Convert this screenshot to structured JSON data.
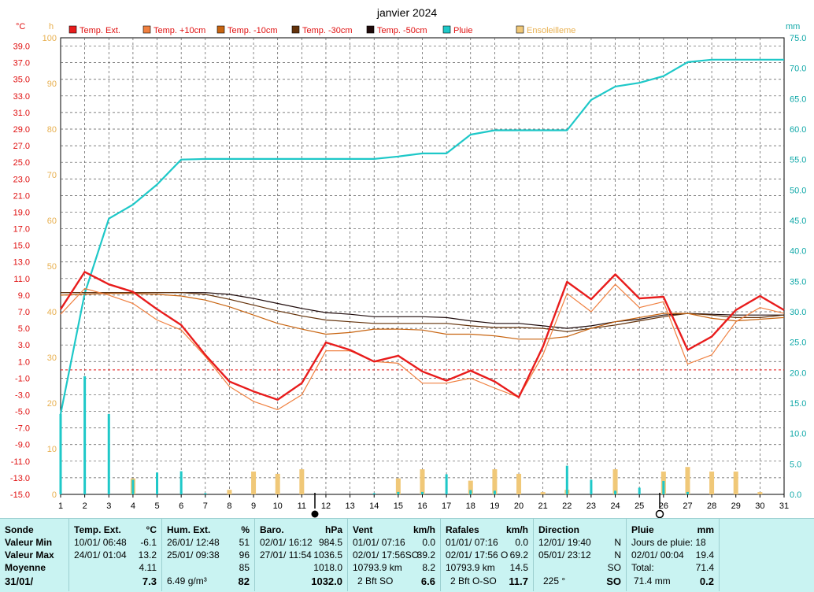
{
  "chart_data": {
    "type": "line",
    "title": "janvier 2024",
    "x": [
      1,
      2,
      3,
      4,
      5,
      6,
      7,
      8,
      9,
      10,
      11,
      12,
      13,
      14,
      15,
      16,
      17,
      18,
      19,
      20,
      21,
      22,
      23,
      24,
      25,
      26,
      27,
      28,
      29,
      30,
      31
    ],
    "x_ticks": [
      "1",
      "2",
      "3",
      "4",
      "5",
      "6",
      "7",
      "8",
      "9",
      "10",
      "11",
      "12",
      "13",
      "14",
      "15",
      "16",
      "17",
      "18",
      "19",
      "20",
      "21",
      "22",
      "23",
      "24",
      "25",
      "26",
      "27",
      "28",
      "29",
      "30",
      "31"
    ],
    "axis_units": {
      "left_temp": "°C",
      "left_sun": "h",
      "right_rain": "mm"
    },
    "y_left_temp": {
      "range": [
        -15,
        40
      ],
      "ticks": [
        "39.0",
        "37.0",
        "35.0",
        "33.0",
        "31.0",
        "29.0",
        "27.0",
        "25.0",
        "23.0",
        "21.0",
        "19.0",
        "17.0",
        "15.0",
        "13.0",
        "11.0",
        "9.0",
        "7.0",
        "5.0",
        "3.0",
        "1.0",
        "-1.0",
        "-3.0",
        "-5.0",
        "-7.0",
        "-9.0",
        "-11.0",
        "-13.0",
        "-15.0"
      ]
    },
    "y_left_sun": {
      "range": [
        0,
        100
      ],
      "ticks": [
        "100",
        "90",
        "80",
        "70",
        "60",
        "50",
        "40",
        "30",
        "20",
        "10",
        "0"
      ]
    },
    "y_right_rain": {
      "range": [
        0,
        75
      ],
      "ticks": [
        "75.0",
        "70.0",
        "65.0",
        "60.0",
        "55.0",
        "50.0",
        "45.0",
        "40.0",
        "35.0",
        "30.0",
        "25.0",
        "20.0",
        "15.0",
        "10.0",
        "5.0",
        "0.0"
      ]
    },
    "grid": true,
    "legend_position": "top",
    "reference_line_temp": 0,
    "series": [
      {
        "name": "Temp. Ext.",
        "color": "#e81c1c",
        "axis": "temp",
        "values": [
          7.3,
          11.8,
          10.3,
          9.4,
          7.3,
          5.4,
          1.8,
          -1.4,
          -2.6,
          -3.6,
          -1.6,
          3.3,
          2.4,
          1.0,
          1.7,
          -0.2,
          -1.3,
          -0.1,
          -1.4,
          -3.3,
          2.8,
          10.6,
          8.5,
          11.5,
          8.6,
          8.8,
          2.4,
          4.0,
          7.2,
          8.9,
          7.2
        ]
      },
      {
        "name": "Temp. +10cm",
        "color": "#f08040",
        "axis": "temp",
        "values": [
          6.7,
          9.8,
          9.0,
          8.0,
          6.0,
          4.8,
          1.6,
          -2.0,
          -3.8,
          -4.8,
          -3.0,
          2.3,
          2.3,
          1.0,
          0.8,
          -1.6,
          -1.6,
          -1.0,
          -2.2,
          -3.3,
          1.8,
          9.2,
          7.0,
          10.3,
          7.5,
          8.2,
          0.7,
          1.8,
          5.8,
          7.5,
          6.8
        ]
      },
      {
        "name": "Temp. -10cm",
        "color": "#c86410",
        "axis": "temp",
        "values": [
          9.0,
          9.1,
          9.2,
          9.2,
          9.1,
          8.9,
          8.4,
          7.6,
          6.6,
          5.6,
          4.9,
          4.3,
          4.5,
          4.9,
          4.9,
          4.8,
          4.3,
          4.3,
          4.1,
          3.7,
          3.7,
          4.0,
          5.0,
          5.8,
          6.3,
          6.8,
          6.8,
          6.2,
          5.9,
          6.1,
          6.3
        ]
      },
      {
        "name": "Temp. -30cm",
        "color": "#64320a",
        "axis": "temp",
        "values": [
          9.3,
          9.3,
          9.3,
          9.3,
          9.3,
          9.3,
          9.1,
          8.5,
          7.8,
          7.1,
          6.5,
          6.0,
          5.8,
          5.6,
          5.6,
          5.6,
          5.6,
          5.3,
          5.1,
          5.1,
          5.0,
          4.6,
          5.0,
          5.4,
          5.9,
          6.4,
          6.8,
          6.6,
          6.3,
          6.3,
          6.6
        ]
      },
      {
        "name": "Temp. -50cm",
        "color": "#1e0a0a",
        "axis": "temp",
        "values": [
          9.3,
          9.3,
          9.3,
          9.3,
          9.3,
          9.3,
          9.3,
          9.1,
          8.6,
          8.0,
          7.4,
          6.9,
          6.7,
          6.4,
          6.4,
          6.4,
          6.3,
          5.9,
          5.6,
          5.6,
          5.3,
          5.0,
          5.3,
          5.8,
          6.1,
          6.6,
          6.8,
          6.7,
          6.6,
          6.6,
          6.6
        ]
      },
      {
        "name": "Pluie",
        "color": "#1ec8c8",
        "axis": "rain",
        "values": [
          13.2,
          33.0,
          45.3,
          47.6,
          50.9,
          55.0,
          55.1,
          55.1,
          55.1,
          55.1,
          55.1,
          55.1,
          55.1,
          55.1,
          55.5,
          56.0,
          56.0,
          59.1,
          59.8,
          59.8,
          59.8,
          59.8,
          64.8,
          67.0,
          67.6,
          68.7,
          71.0,
          71.4,
          71.4,
          71.4,
          71.4
        ]
      },
      {
        "name": "Ensoleilleme",
        "color": "#f0c878",
        "axis": "sun",
        "type": "bar",
        "values": [
          0,
          0,
          0,
          3.5,
          0,
          0,
          0,
          1,
          5,
          4.5,
          5.5,
          0,
          0,
          0,
          3.5,
          5.5,
          0,
          3,
          5.5,
          4.5,
          0.5,
          1,
          0,
          5.5,
          0,
          5,
          6,
          5,
          5,
          0.5,
          0
        ]
      },
      {
        "name": "Pluie journalière",
        "color": "#1ec8c8",
        "axis": "rain",
        "type": "bar",
        "legend": false,
        "values": [
          13.2,
          19.4,
          13.2,
          2.4,
          3.6,
          3.8,
          0.2,
          0,
          0,
          0,
          0,
          0,
          0,
          0.2,
          0.4,
          0.4,
          3.3,
          0.7,
          0.6,
          0,
          0,
          4.7,
          2.4,
          0.6,
          1.1,
          2.2,
          0.4,
          0,
          0,
          0,
          0
        ]
      }
    ]
  },
  "summary": {
    "sonde": {
      "header": "Sonde",
      "rows": [
        "Valeur Min",
        "Valeur Max",
        "Moyenne",
        "31/01/"
      ]
    },
    "temp": {
      "title": "Temp. Ext.",
      "unit": "°C",
      "min_time": "10/01/ 06:48",
      "min_val": "-6.1",
      "max_time": "24/01/ 01:04",
      "max_val": "13.2",
      "avg": "4.11",
      "current": "7.3"
    },
    "hum": {
      "title": "Hum. Ext.",
      "unit": "%",
      "min_time": "26/01/ 12:48",
      "min_val": "51",
      "max_time": "25/01/ 09:38",
      "max_val": "96",
      "avg": "85",
      "extra": "6.49 g/m³",
      "current": "82"
    },
    "baro": {
      "title": "Baro.",
      "unit": "hPa",
      "min_time": "02/01/ 16:12",
      "min_val": "984.5",
      "max_time": "27/01/ 11:54",
      "max_val": "1036.5",
      "avg": "1018.0",
      "current": "1032.0"
    },
    "vent": {
      "title": "Vent",
      "unit": "km/h",
      "min_time": "01/01/ 07:16",
      "min_val": "0.0",
      "max_time": "02/01/ 17:56SO",
      "max_val": "39.2",
      "dist": "10793.9 km",
      "avg": "8.2",
      "extra": "2 Bft SO",
      "current": "6.6"
    },
    "rafales": {
      "title": "Rafales",
      "unit": "km/h",
      "min_time": "01/01/ 07:16",
      "min_val": "0.0",
      "max_time": "02/01/ 17:56 O",
      "max_val": "69.2",
      "dist": "10793.9 km",
      "avg": "14.5",
      "extra": "2 Bft O-SO",
      "current": "11.7"
    },
    "direction": {
      "title": "Direction",
      "min_time": "12/01/ 19:40",
      "min_val": "N",
      "max_time": "05/01/ 23:12",
      "max_val": "N",
      "avg": "SO",
      "extra": "225 °",
      "current": "SO"
    },
    "pluie": {
      "title": "Pluie",
      "unit": "mm",
      "jours": "Jours de pluie: 18",
      "max_time": "02/01/ 00:04",
      "max_val": "19.4",
      "total_label": "Total:",
      "total_val": "71.4",
      "extra": "71.4 mm",
      "current": "0.2"
    }
  }
}
